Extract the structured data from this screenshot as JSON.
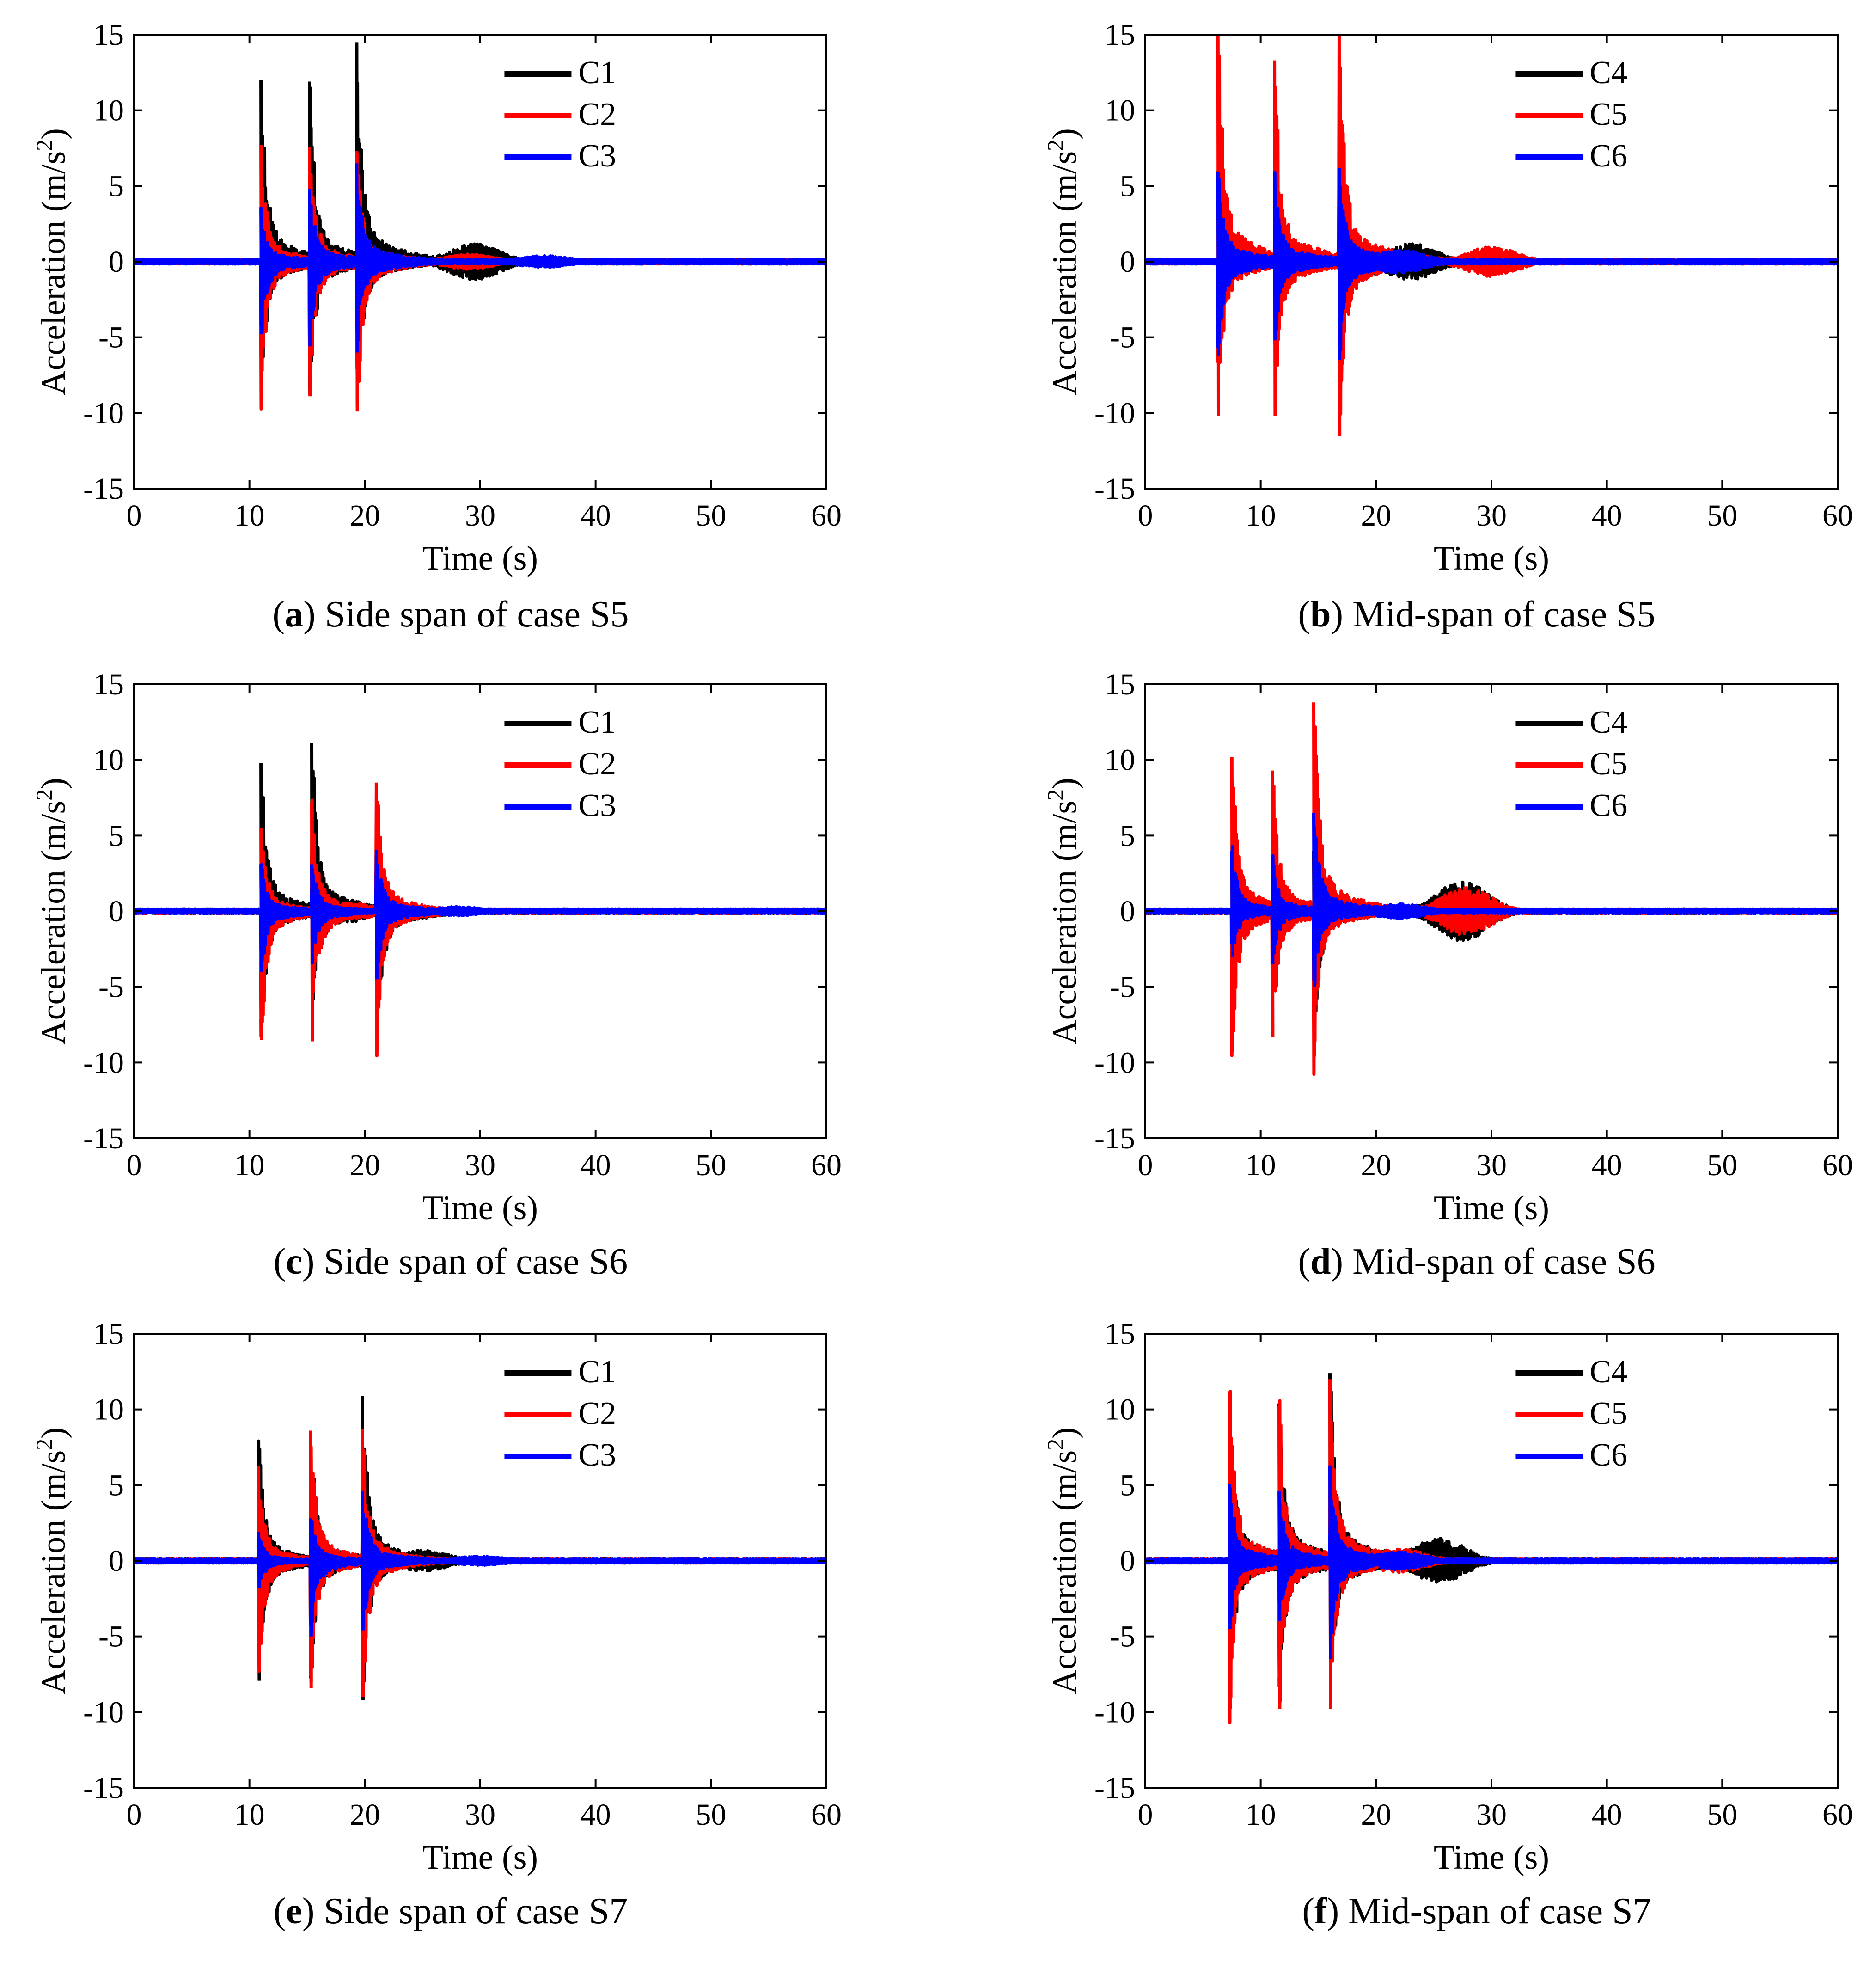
{
  "colors": {
    "C1": "#000000",
    "C2": "#ff0000",
    "C3": "#0000ff",
    "C4": "#000000",
    "C5": "#ff0000",
    "C6": "#0000ff"
  },
  "chart_data": [
    {
      "type": "line",
      "panel": "a",
      "caption_letter": "a",
      "caption_text": "Side span of case S5",
      "xlabel": "Time (s)",
      "ylabel_main": "Acceleration",
      "ylabel_unit": "(m/s",
      "ylabel_sup": "2",
      "ylabel_close": ")",
      "xlim": [
        0,
        60
      ],
      "ylim": [
        -15,
        15
      ],
      "xticks": [
        0,
        10,
        20,
        30,
        40,
        50,
        60
      ],
      "yticks": [
        -15,
        -10,
        -5,
        0,
        5,
        10,
        15
      ],
      "legend_position": "top-right",
      "grid": false,
      "series": [
        {
          "name": "C1",
          "color": "#000000",
          "events": [
            {
              "t": 11.0,
              "max": 12.0,
              "min": -8.5
            },
            {
              "t": 15.2,
              "max": 11.9,
              "min": -8.8
            },
            {
              "t": 19.3,
              "max": 14.5,
              "min": -9.5
            }
          ],
          "sustain": 0.8,
          "bump_t": 29.5,
          "bump_amp": 1.2
        },
        {
          "name": "C2",
          "color": "#ff0000",
          "events": [
            {
              "t": 11.0,
              "max": 7.7,
              "min": -9.0
            },
            {
              "t": 15.2,
              "max": 7.6,
              "min": -8.9
            },
            {
              "t": 19.3,
              "max": 7.3,
              "min": -9.9
            }
          ],
          "sustain": 0.6,
          "bump_t": 29.0,
          "bump_amp": 0.5
        },
        {
          "name": "C3",
          "color": "#0000ff",
          "events": [
            {
              "t": 11.0,
              "max": 3.6,
              "min": -4.8
            },
            {
              "t": 15.2,
              "max": 4.8,
              "min": -5.6
            },
            {
              "t": 19.3,
              "max": 6.5,
              "min": -6.0
            }
          ],
          "sustain": 1.2,
          "bump_t": 35.5,
          "bump_amp": 0.4
        }
      ]
    },
    {
      "type": "line",
      "panel": "b",
      "caption_letter": "b",
      "caption_text": "Mid-span of case S5",
      "xlabel": "Time (s)",
      "ylabel_main": "Acceleration",
      "ylabel_unit": "(m/s",
      "ylabel_sup": "2",
      "ylabel_close": ")",
      "xlim": [
        0,
        60
      ],
      "ylim": [
        -15,
        15
      ],
      "xticks": [
        0,
        10,
        20,
        30,
        40,
        50,
        60
      ],
      "yticks": [
        -15,
        -10,
        -5,
        0,
        5,
        10,
        15
      ],
      "legend_position": "top-right",
      "grid": false,
      "series": [
        {
          "name": "C4",
          "color": "#000000",
          "events": [
            {
              "t": 6.3,
              "max": 6.0,
              "min": -6.0
            },
            {
              "t": 11.2,
              "max": 5.0,
              "min": -5.5
            },
            {
              "t": 16.8,
              "max": 6.0,
              "min": -9.5
            }
          ],
          "sustain": 1.8,
          "bump_t": 23.0,
          "bump_amp": 1.2
        },
        {
          "name": "C5",
          "color": "#ff0000",
          "events": [
            {
              "t": 6.3,
              "max": 15.0,
              "min": -10.2
            },
            {
              "t": 11.2,
              "max": 13.3,
              "min": -10.2
            },
            {
              "t": 16.8,
              "max": 15.0,
              "min": -11.5
            }
          ],
          "sustain": 1.2,
          "bump_t": 30.0,
          "bump_amp": 1.0
        },
        {
          "name": "C6",
          "color": "#0000ff",
          "events": [
            {
              "t": 6.3,
              "max": 5.9,
              "min": -6.2
            },
            {
              "t": 11.2,
              "max": 5.6,
              "min": -5.2
            },
            {
              "t": 16.8,
              "max": 6.2,
              "min": -6.5
            }
          ],
          "sustain": 2.0,
          "bump_t": 22.0,
          "bump_amp": 0.8
        }
      ]
    },
    {
      "type": "line",
      "panel": "c",
      "caption_letter": "c",
      "caption_text": "Side span of case S6",
      "xlabel": "Time (s)",
      "ylabel_main": "Acceleration",
      "ylabel_unit": "(m/s",
      "ylabel_sup": "2",
      "ylabel_close": ")",
      "xlim": [
        0,
        60
      ],
      "ylim": [
        -15,
        15
      ],
      "xticks": [
        0,
        10,
        20,
        30,
        40,
        50,
        60
      ],
      "yticks": [
        -15,
        -10,
        -5,
        0,
        5,
        10,
        15
      ],
      "legend_position": "top-right",
      "grid": false,
      "series": [
        {
          "name": "C1",
          "color": "#000000",
          "events": [
            {
              "t": 11.0,
              "max": 9.8,
              "min": -8.0
            },
            {
              "t": 15.4,
              "max": 11.1,
              "min": -8.2
            },
            {
              "t": 21.0,
              "max": 4.0,
              "min": -9.2
            }
          ],
          "sustain": 0.8,
          "bump_t": 18.0,
          "bump_amp": 0.8
        },
        {
          "name": "C2",
          "color": "#ff0000",
          "events": [
            {
              "t": 11.0,
              "max": 5.5,
              "min": -8.5
            },
            {
              "t": 15.4,
              "max": 7.2,
              "min": -8.6
            },
            {
              "t": 21.0,
              "max": 8.5,
              "min": -9.0
            }
          ],
          "sustain": 0.6,
          "bump_t": 18.5,
          "bump_amp": 0.6
        },
        {
          "name": "C3",
          "color": "#0000ff",
          "events": [
            {
              "t": 11.0,
              "max": 3.1,
              "min": -4.0
            },
            {
              "t": 15.4,
              "max": 3.1,
              "min": -3.5
            },
            {
              "t": 21.0,
              "max": 4.0,
              "min": -4.5
            }
          ],
          "sustain": 1.2,
          "bump_t": 28.0,
          "bump_amp": 0.3
        }
      ]
    },
    {
      "type": "line",
      "panel": "d",
      "caption_letter": "d",
      "caption_text": "Mid-span of case S6",
      "xlabel": "Time (s)",
      "ylabel_main": "Acceleration",
      "ylabel_unit": "(m/s",
      "ylabel_sup": "2",
      "ylabel_close": ")",
      "xlim": [
        0,
        60
      ],
      "ylim": [
        -15,
        15
      ],
      "xticks": [
        0,
        10,
        20,
        30,
        40,
        50,
        60
      ],
      "yticks": [
        -15,
        -10,
        -5,
        0,
        5,
        10,
        15
      ],
      "legend_position": "top-right",
      "grid": false,
      "series": [
        {
          "name": "C4",
          "color": "#000000",
          "events": [
            {
              "t": 7.5,
              "max": 4.0,
              "min": -3.5
            },
            {
              "t": 11.0,
              "max": 3.0,
              "min": -2.5
            },
            {
              "t": 14.6,
              "max": 4.0,
              "min": -9.0
            }
          ],
          "sustain": 0.8,
          "bump_t": 27.5,
          "bump_amp": 2.0
        },
        {
          "name": "C5",
          "color": "#ff0000",
          "events": [
            {
              "t": 7.5,
              "max": 10.2,
              "min": -9.3
            },
            {
              "t": 11.0,
              "max": 9.3,
              "min": -8.3
            },
            {
              "t": 14.6,
              "max": 13.8,
              "min": -9.6
            }
          ],
          "sustain": 1.0,
          "bump_t": 27.8,
          "bump_amp": 1.6
        },
        {
          "name": "C6",
          "color": "#0000ff",
          "events": [
            {
              "t": 7.5,
              "max": 4.0,
              "min": -3.0
            },
            {
              "t": 11.0,
              "max": 3.6,
              "min": -3.5
            },
            {
              "t": 14.6,
              "max": 6.5,
              "min": -5.0
            }
          ],
          "sustain": 1.5,
          "bump_t": 22.0,
          "bump_amp": 0.5
        }
      ]
    },
    {
      "type": "line",
      "panel": "e",
      "caption_letter": "e",
      "caption_text": "Side span of case S7",
      "xlabel": "Time (s)",
      "ylabel_main": "Acceleration",
      "ylabel_unit": "(m/s",
      "ylabel_sup": "2",
      "ylabel_close": ")",
      "xlim": [
        0,
        60
      ],
      "ylim": [
        -15,
        15
      ],
      "xticks": [
        0,
        10,
        20,
        30,
        40,
        50,
        60
      ],
      "yticks": [
        -15,
        -10,
        -5,
        0,
        5,
        10,
        15
      ],
      "legend_position": "top-right",
      "grid": false,
      "series": [
        {
          "name": "C1",
          "color": "#000000",
          "events": [
            {
              "t": 10.8,
              "max": 7.5,
              "min": -7.9
            },
            {
              "t": 15.3,
              "max": 8.0,
              "min": -8.0
            },
            {
              "t": 19.8,
              "max": 10.9,
              "min": -9.2
            }
          ],
          "sustain": 0.7,
          "bump_t": 25.0,
          "bump_amp": 0.7
        },
        {
          "name": "C2",
          "color": "#ff0000",
          "events": [
            {
              "t": 10.8,
              "max": 5.8,
              "min": -7.2
            },
            {
              "t": 15.3,
              "max": 8.6,
              "min": -8.4
            },
            {
              "t": 19.8,
              "max": 8.7,
              "min": -9.0
            }
          ],
          "sustain": 0.6,
          "bump_t": 22.0,
          "bump_amp": 0.5
        },
        {
          "name": "C3",
          "color": "#0000ff",
          "events": [
            {
              "t": 10.8,
              "max": 1.7,
              "min": -1.8
            },
            {
              "t": 15.3,
              "max": 2.8,
              "min": -5.0
            },
            {
              "t": 19.8,
              "max": 4.6,
              "min": -4.6
            }
          ],
          "sustain": 1.0,
          "bump_t": 30.0,
          "bump_amp": 0.3
        }
      ]
    },
    {
      "type": "line",
      "panel": "f",
      "caption_letter": "f",
      "caption_text": "Mid-span of case S7",
      "xlabel": "Time (s)",
      "ylabel_main": "Acceleration",
      "ylabel_unit": "(m/s",
      "ylabel_sup": "2",
      "ylabel_close": ")",
      "xlim": [
        0,
        60
      ],
      "ylim": [
        -15,
        15
      ],
      "xticks": [
        0,
        10,
        20,
        30,
        40,
        50,
        60
      ],
      "yticks": [
        -15,
        -10,
        -5,
        0,
        5,
        10,
        15
      ],
      "legend_position": "top-right",
      "grid": false,
      "series": [
        {
          "name": "C4",
          "color": "#000000",
          "events": [
            {
              "t": 7.3,
              "max": 10.0,
              "min": -9.0
            },
            {
              "t": 11.6,
              "max": 10.4,
              "min": -9.5
            },
            {
              "t": 16.0,
              "max": 12.4,
              "min": -9.5
            }
          ],
          "sustain": 1.5,
          "bump_t": 25.5,
          "bump_amp": 1.5
        },
        {
          "name": "C5",
          "color": "#ff0000",
          "events": [
            {
              "t": 7.3,
              "max": 11.2,
              "min": -9.8
            },
            {
              "t": 11.6,
              "max": 10.2,
              "min": -9.8
            },
            {
              "t": 16.0,
              "max": 12.0,
              "min": -9.8
            }
          ],
          "sustain": 1.2,
          "bump_t": 22.0,
          "bump_amp": 0.8
        },
        {
          "name": "C6",
          "color": "#0000ff",
          "events": [
            {
              "t": 7.3,
              "max": 5.1,
              "min": -4.5
            },
            {
              "t": 11.6,
              "max": 4.6,
              "min": -4.0
            },
            {
              "t": 16.0,
              "max": 6.3,
              "min": -6.5
            }
          ],
          "sustain": 1.5,
          "bump_t": 22.0,
          "bump_amp": 0.6
        }
      ]
    }
  ]
}
